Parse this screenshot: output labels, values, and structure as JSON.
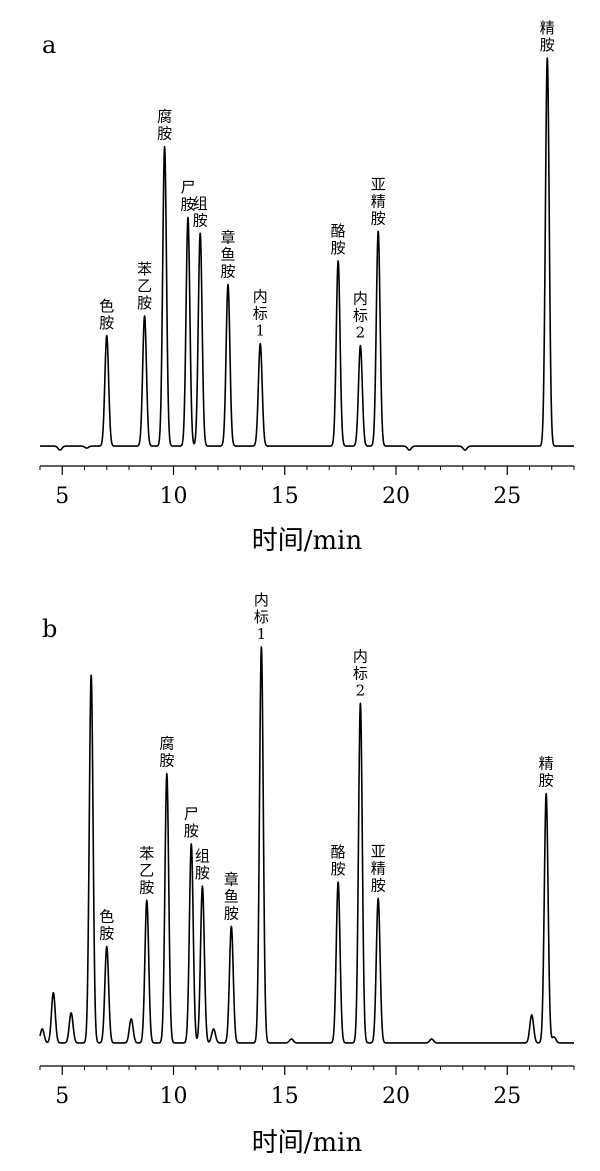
{
  "chart_data": [
    {
      "type": "line",
      "panel": "a",
      "xlabel": "时间/min",
      "ylabel": "",
      "xlim": [
        4,
        28
      ],
      "ylim": [
        0,
        100
      ],
      "xticks": [
        5,
        10,
        15,
        20,
        25
      ],
      "grid": false,
      "baseline": 1.5,
      "series": [
        {
          "peaks": [
            {
              "x": 4.9,
              "y": 0.5,
              "label": ""
            },
            {
              "x": 6.1,
              "y": 1.0,
              "label": ""
            },
            {
              "x": 7.0,
              "y": 29.5,
              "label": "色胺"
            },
            {
              "x": 8.7,
              "y": 34.5,
              "label": "苯乙胺"
            },
            {
              "x": 9.6,
              "y": 77.5,
              "label": "腐胺"
            },
            {
              "x": 10.65,
              "y": 59.5,
              "label": "尸胺"
            },
            {
              "x": 11.2,
              "y": 55.5,
              "label": "组胺"
            },
            {
              "x": 12.45,
              "y": 42.5,
              "label": "章鱼胺"
            },
            {
              "x": 13.9,
              "y": 27.5,
              "label": "内标1"
            },
            {
              "x": 17.4,
              "y": 48.5,
              "label": "酪胺"
            },
            {
              "x": 18.4,
              "y": 27.0,
              "label": "内标2"
            },
            {
              "x": 19.2,
              "y": 56.0,
              "label": "亚精胺"
            },
            {
              "x": 20.6,
              "y": 0.5,
              "label": ""
            },
            {
              "x": 23.1,
              "y": 0.5,
              "label": ""
            },
            {
              "x": 26.1,
              "y": 1.5,
              "label": ""
            },
            {
              "x": 26.8,
              "y": 100.0,
              "label": "精胺"
            }
          ]
        }
      ]
    },
    {
      "type": "line",
      "panel": "b",
      "xlabel": "时间/min",
      "ylabel": "",
      "xlim": [
        4,
        28
      ],
      "ylim": [
        0,
        100
      ],
      "xticks": [
        5,
        10,
        15,
        20,
        25
      ],
      "grid": false,
      "baseline": 1.5,
      "series": [
        {
          "peaks": [
            {
              "x": 4.1,
              "y": 5.0,
              "label": ""
            },
            {
              "x": 4.6,
              "y": 14.0,
              "label": ""
            },
            {
              "x": 5.4,
              "y": 9.0,
              "label": ""
            },
            {
              "x": 6.3,
              "y": 93.0,
              "label": ""
            },
            {
              "x": 7.0,
              "y": 25.5,
              "label": "色胺"
            },
            {
              "x": 8.1,
              "y": 7.5,
              "label": ""
            },
            {
              "x": 8.8,
              "y": 37.0,
              "label": "苯乙胺"
            },
            {
              "x": 9.7,
              "y": 68.5,
              "label": "腐胺"
            },
            {
              "x": 10.8,
              "y": 51.0,
              "label": "尸胺"
            },
            {
              "x": 11.3,
              "y": 40.5,
              "label": "组胺"
            },
            {
              "x": 11.8,
              "y": 5.0,
              "label": ""
            },
            {
              "x": 12.6,
              "y": 30.5,
              "label": "章鱼胺"
            },
            {
              "x": 13.95,
              "y": 100.0,
              "label": "内标1"
            },
            {
              "x": 15.3,
              "y": 2.5,
              "label": ""
            },
            {
              "x": 15.9,
              "y": 1.5,
              "label": ""
            },
            {
              "x": 17.4,
              "y": 41.5,
              "label": "酪胺"
            },
            {
              "x": 18.4,
              "y": 86.0,
              "label": "内标2"
            },
            {
              "x": 19.2,
              "y": 37.5,
              "label": "亚精胺"
            },
            {
              "x": 21.6,
              "y": 2.5,
              "label": ""
            },
            {
              "x": 23.2,
              "y": 1.5,
              "label": ""
            },
            {
              "x": 26.1,
              "y": 8.5,
              "label": ""
            },
            {
              "x": 26.75,
              "y": 63.5,
              "label": "精胺"
            },
            {
              "x": 27.1,
              "y": 3.0,
              "label": ""
            }
          ]
        }
      ]
    }
  ]
}
